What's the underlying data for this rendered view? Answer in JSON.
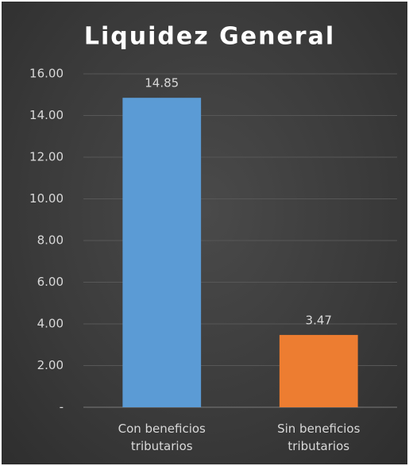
{
  "chart_data": {
    "type": "bar",
    "title": "Liquidez General",
    "categories": [
      "Con beneficios tributarios",
      "Sin beneficios tributarios"
    ],
    "values": [
      14.85,
      3.47
    ],
    "colors": [
      "#5b9bd5",
      "#ed7d31"
    ],
    "ylim": [
      0,
      16
    ],
    "yticks": [
      {
        "value": 0,
        "label": "-"
      },
      {
        "value": 2,
        "label": "2.00"
      },
      {
        "value": 4,
        "label": "4.00"
      },
      {
        "value": 6,
        "label": "6.00"
      },
      {
        "value": 8,
        "label": "8.00"
      },
      {
        "value": 10,
        "label": "10.00"
      },
      {
        "value": 12,
        "label": "12.00"
      },
      {
        "value": 14,
        "label": "14.00"
      },
      {
        "value": 16,
        "label": "16.00"
      }
    ],
    "grid": true
  }
}
